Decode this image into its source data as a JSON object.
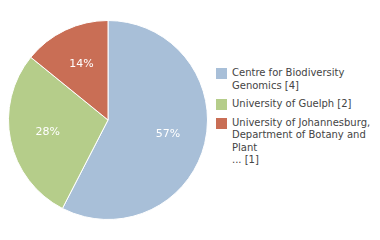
{
  "chart_data": {
    "type": "pie",
    "categories": [
      "Centre for Biodiversity\nGenomics [4]",
      "University of Guelph [2]",
      "University of Johannesburg,\nDepartment of Botany and Plant\n... [1]"
    ],
    "values": [
      57,
      28,
      14
    ],
    "value_labels": [
      "57%",
      "28%",
      "14%"
    ],
    "colors": [
      "#a8bfd8",
      "#b5cd8a",
      "#c96e55"
    ],
    "data_labels": true,
    "legend": "right"
  }
}
